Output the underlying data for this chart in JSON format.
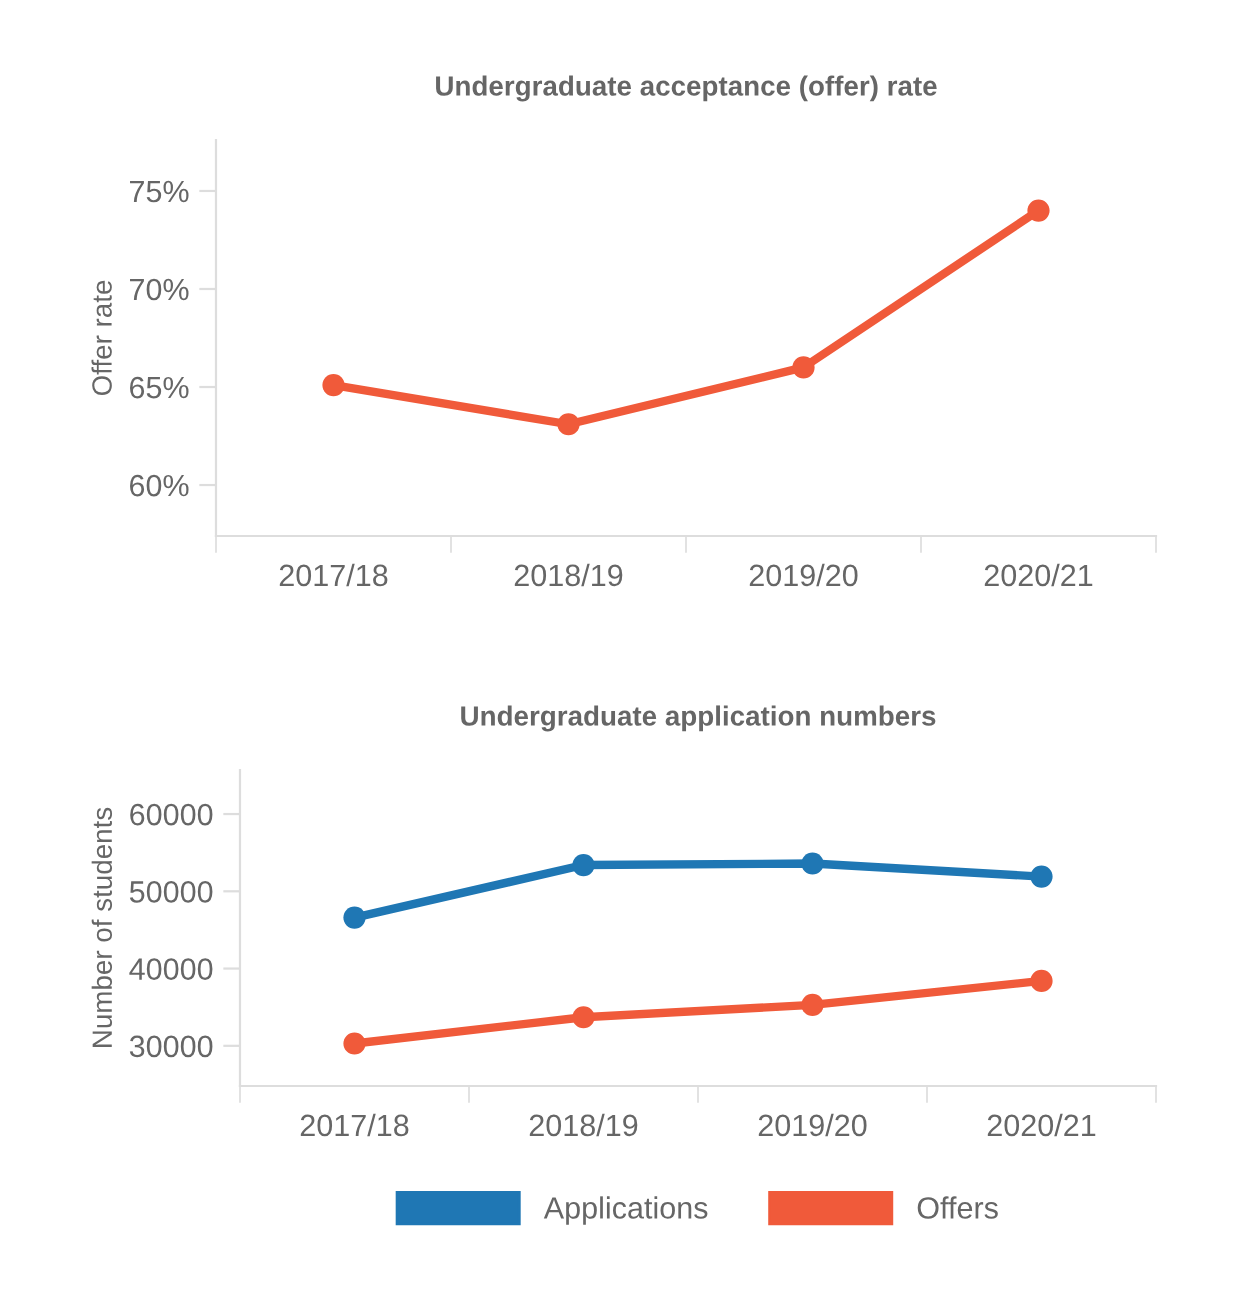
{
  "chart_data": [
    {
      "type": "line",
      "title": "Undergraduate acceptance (offer) rate",
      "ylabel": "Offer rate",
      "categories": [
        "2017/18",
        "2018/19",
        "2019/20",
        "2020/21"
      ],
      "series": [
        {
          "color": "#f05a3a",
          "values": [
            65.1,
            63.1,
            66.0,
            74.0
          ]
        }
      ],
      "ylim": [
        57.4,
        77.6
      ],
      "yticks": [
        {
          "value": 60,
          "label": "60%"
        },
        {
          "value": 65,
          "label": "65%"
        },
        {
          "value": 70,
          "label": "70%"
        },
        {
          "value": 75,
          "label": "75%"
        }
      ],
      "marker": "circle",
      "line_style": "solid",
      "grid": false,
      "legend": false
    },
    {
      "type": "line",
      "title": "Undergraduate application numbers",
      "ylabel": "Number of students",
      "categories": [
        "2017/18",
        "2018/19",
        "2019/20",
        "2020/21"
      ],
      "series": [
        {
          "name": "Applications",
          "color": "#1f77b4",
          "values": [
            46600,
            53400,
            53600,
            51900
          ]
        },
        {
          "name": "Offers",
          "color": "#f05a3a",
          "values": [
            30300,
            33700,
            35300,
            38400
          ]
        }
      ],
      "ylim": [
        24800,
        65700
      ],
      "yticks": [
        30000,
        40000,
        50000,
        60000
      ],
      "marker": "circle",
      "line_style": "solid",
      "grid": false,
      "legend": "bottom"
    }
  ]
}
